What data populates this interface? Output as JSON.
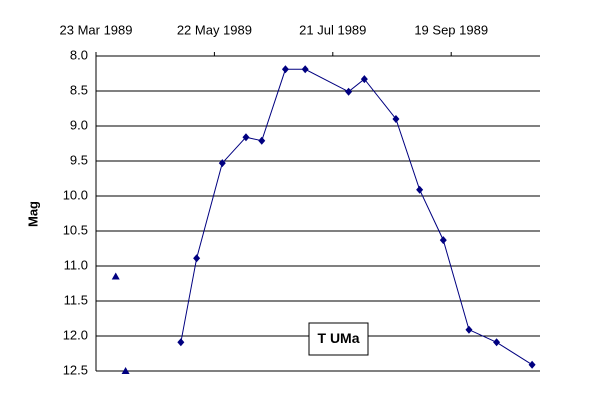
{
  "chart_data": {
    "type": "line",
    "ylabel": "Mag",
    "annotation": "T UMa",
    "x_type": "date",
    "xlim": [
      "1989-03-23",
      "1989-11-03"
    ],
    "xticks": [
      {
        "value": "1989-03-23",
        "label": "23 Mar 1989"
      },
      {
        "value": "1989-05-22",
        "label": "22 May 1989"
      },
      {
        "value": "1989-07-21",
        "label": "21 Jul 1989"
      },
      {
        "value": "1989-09-19",
        "label": "19 Sep 1989"
      }
    ],
    "xaxis_position": "top",
    "ylim": [
      8.0,
      12.5
    ],
    "y_inverted": true,
    "yticks": [
      {
        "value": 8.0,
        "label": "8.0"
      },
      8.5,
      {
        "value": 9.0,
        "label": "9.0"
      },
      9.5,
      {
        "value": 10.0,
        "label": "10.0"
      },
      10.5,
      {
        "value": 11.0,
        "label": "11.0"
      },
      11.5,
      {
        "value": 12.0,
        "label": "12.0"
      },
      12.5
    ],
    "grid": true,
    "series": [
      {
        "color": "#000080",
        "marker": "diamond",
        "line": true,
        "x": [
          "1989-05-05",
          "1989-05-13",
          "1989-05-26",
          "1989-06-07",
          "1989-06-15",
          "1989-06-27",
          "1989-07-07",
          "1989-07-29",
          "1989-08-06",
          "1989-08-22",
          "1989-09-03",
          "1989-09-15",
          "1989-09-28",
          "1989-10-12",
          "1989-10-30"
        ],
        "values": [
          12.09,
          10.89,
          9.53,
          9.16,
          9.21,
          8.19,
          8.19,
          8.51,
          8.33,
          8.9,
          9.91,
          10.63,
          11.91,
          12.09,
          12.41
        ]
      },
      {
        "color": "#000080",
        "marker": "triangle",
        "line": false,
        "x": [
          "1989-04-02",
          "1989-04-07"
        ],
        "values": [
          11.15,
          12.5
        ]
      }
    ]
  }
}
